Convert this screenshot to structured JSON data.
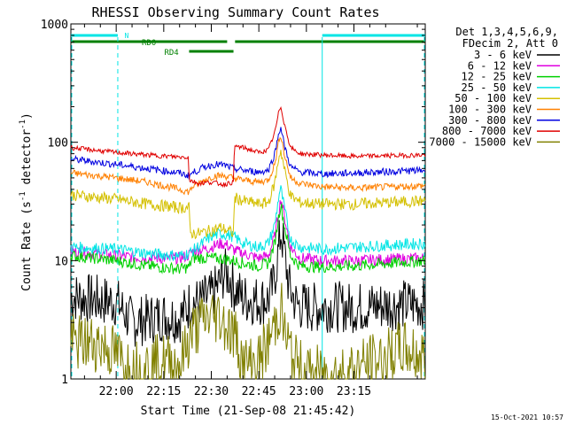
{
  "chart_data": {
    "type": "line",
    "title": "RHESSI Observing Summary Count Rates",
    "xlabel": "Start Time (21-Sep-08 21:45:42)",
    "ylabel": "Count Rate (s⁻¹ detector⁻¹)",
    "ylabel_parts": {
      "main": "Count Rate (s",
      "exp1": "-1",
      "mid": " detector",
      "exp2": "-1",
      "end": ")"
    },
    "y_scale": "log",
    "ylim": [
      1,
      1000
    ],
    "xlim_minutes": [
      -14.3,
      97.5
    ],
    "x_ticks": [
      {
        "label": "22:00",
        "min": 0
      },
      {
        "label": "22:15",
        "min": 15
      },
      {
        "label": "22:30",
        "min": 30
      },
      {
        "label": "22:45",
        "min": 45
      },
      {
        "label": "23:00",
        "min": 60
      },
      {
        "label": "23:15",
        "min": 75
      }
    ],
    "y_ticks": [
      {
        "label": "1000",
        "value": 1000
      },
      {
        "label": "100",
        "value": 100
      },
      {
        "label": "10",
        "value": 10
      },
      {
        "label": "1",
        "value": 1
      }
    ],
    "legend_header": [
      "Det 1,3,4,5,6,9,",
      "FDecim 2, Att 0"
    ],
    "legend_placement": "right",
    "timestamp": "15-Oct-2021 10:57",
    "flags": [
      {
        "label": "N",
        "color": "#00e5e5",
        "start": -14.3,
        "end": 0.5,
        "level": 1
      },
      {
        "label": "",
        "color": "#00e5e5",
        "start": 65,
        "end": 97.5,
        "level": 1
      },
      {
        "label": "RD0",
        "color": "#008000",
        "start": -14.3,
        "end": 35,
        "level": 2
      },
      {
        "label": "",
        "color": "#008000",
        "start": 37.5,
        "end": 97.5,
        "level": 2
      },
      {
        "label": "RD4",
        "color": "#008000",
        "start": 23,
        "end": 37,
        "level": 3
      }
    ],
    "night_markers": [
      0.5,
      65
    ],
    "saa_markers": [
      -14.3,
      97.5
    ],
    "series": [
      {
        "name": "3 - 6 keV",
        "color": "#000000",
        "knots": [
          [
            -14.3,
            5
          ],
          [
            -5,
            4.6
          ],
          [
            0,
            4.5
          ],
          [
            5,
            3
          ],
          [
            10,
            3.2
          ],
          [
            15,
            3.4
          ],
          [
            20,
            3.3
          ],
          [
            22,
            3.8
          ],
          [
            23.5,
            4.5
          ],
          [
            26,
            4.4
          ],
          [
            30,
            5
          ],
          [
            32,
            6
          ],
          [
            34,
            7.8
          ],
          [
            35.5,
            7.5
          ],
          [
            37,
            6
          ],
          [
            40,
            4.8
          ],
          [
            45,
            4.6
          ],
          [
            48,
            4.7
          ],
          [
            49.5,
            6
          ],
          [
            51,
            11
          ],
          [
            52,
            18
          ],
          [
            53,
            12
          ],
          [
            54.5,
            6
          ],
          [
            57,
            4.2
          ],
          [
            62,
            4
          ],
          [
            68,
            4.1
          ],
          [
            75,
            4
          ],
          [
            85,
            4.2
          ],
          [
            97.5,
            4.3
          ]
        ],
        "noise": 0.22
      },
      {
        "name": "6 - 12 keV",
        "color": "#e000e0",
        "knots": [
          [
            -14.3,
            12
          ],
          [
            0,
            11
          ],
          [
            10,
            10.5
          ],
          [
            20,
            10.5
          ],
          [
            22.5,
            11
          ],
          [
            24,
            12
          ],
          [
            28,
            12.5
          ],
          [
            30,
            13
          ],
          [
            33,
            14
          ],
          [
            35,
            13.5
          ],
          [
            37,
            12.3
          ],
          [
            40,
            11.5
          ],
          [
            45,
            10.5
          ],
          [
            48,
            11
          ],
          [
            50,
            16
          ],
          [
            51.5,
            28
          ],
          [
            52,
            34
          ],
          [
            53,
            24
          ],
          [
            55,
            13
          ],
          [
            58,
            10.5
          ],
          [
            65,
            10
          ],
          [
            75,
            10
          ],
          [
            97.5,
            10.5
          ]
        ],
        "noise": 0.05
      },
      {
        "name": "12 - 25 keV",
        "color": "#00d000",
        "knots": [
          [
            -14.3,
            11
          ],
          [
            0,
            10
          ],
          [
            10,
            9
          ],
          [
            20,
            8.5
          ],
          [
            23,
            8.8
          ],
          [
            24,
            10.5
          ],
          [
            30,
            10.5
          ],
          [
            35,
            10.3
          ],
          [
            37,
            10
          ],
          [
            40,
            9.5
          ],
          [
            45,
            9
          ],
          [
            48,
            9.5
          ],
          [
            50,
            14
          ],
          [
            51.5,
            26
          ],
          [
            52,
            30
          ],
          [
            53,
            20
          ],
          [
            55,
            11
          ],
          [
            58,
            9
          ],
          [
            65,
            8.8
          ],
          [
            75,
            9
          ],
          [
            97.5,
            10
          ]
        ],
        "noise": 0.05
      },
      {
        "name": "25 - 50 keV",
        "color": "#00e5e5",
        "knots": [
          [
            -14.3,
            13
          ],
          [
            0,
            12.5
          ],
          [
            10,
            11.5
          ],
          [
            20,
            11
          ],
          [
            23,
            11.5
          ],
          [
            24,
            12
          ],
          [
            30,
            16
          ],
          [
            33,
            17
          ],
          [
            35,
            16.5
          ],
          [
            37,
            16
          ],
          [
            40,
            14
          ],
          [
            45,
            13
          ],
          [
            48,
            14
          ],
          [
            50,
            20
          ],
          [
            51.5,
            38
          ],
          [
            52,
            40
          ],
          [
            53,
            28
          ],
          [
            55,
            15
          ],
          [
            58,
            13
          ],
          [
            65,
            12.5
          ],
          [
            75,
            13
          ],
          [
            97.5,
            14
          ]
        ],
        "noise": 0.05
      },
      {
        "name": "50 - 100 keV",
        "color": "#d4c000",
        "knots": [
          [
            -14.3,
            36
          ],
          [
            0,
            33
          ],
          [
            10,
            30
          ],
          [
            20,
            28
          ],
          [
            23,
            28
          ],
          [
            23.3,
            17
          ],
          [
            26,
            17
          ],
          [
            30,
            18
          ],
          [
            33,
            19
          ],
          [
            35,
            18
          ],
          [
            37,
            17
          ],
          [
            37.3,
            34
          ],
          [
            40,
            32
          ],
          [
            45,
            30
          ],
          [
            48,
            31
          ],
          [
            50,
            45
          ],
          [
            51.5,
            80
          ],
          [
            52,
            85
          ],
          [
            53,
            60
          ],
          [
            55,
            35
          ],
          [
            58,
            31
          ],
          [
            65,
            30
          ],
          [
            75,
            30
          ],
          [
            97.5,
            32
          ]
        ],
        "noise": 0.05
      },
      {
        "name": "100 - 300 keV",
        "color": "#ff8000",
        "knots": [
          [
            -14.3,
            55
          ],
          [
            0,
            50
          ],
          [
            10,
            46
          ],
          [
            20,
            40
          ],
          [
            23,
            38
          ],
          [
            24,
            42
          ],
          [
            28,
            48
          ],
          [
            31,
            52
          ],
          [
            34,
            52
          ],
          [
            37,
            50
          ],
          [
            40,
            48
          ],
          [
            45,
            46
          ],
          [
            48,
            48
          ],
          [
            50,
            65
          ],
          [
            51.5,
            110
          ],
          [
            52,
            115
          ],
          [
            53,
            80
          ],
          [
            55,
            50
          ],
          [
            58,
            45
          ],
          [
            65,
            42
          ],
          [
            75,
            41
          ],
          [
            97.5,
            43
          ]
        ],
        "noise": 0.03
      },
      {
        "name": "300 - 800 keV",
        "color": "#0000e0",
        "knots": [
          [
            -14.3,
            72
          ],
          [
            0,
            65
          ],
          [
            10,
            60
          ],
          [
            20,
            55
          ],
          [
            23,
            52
          ],
          [
            24,
            55
          ],
          [
            28,
            62
          ],
          [
            31,
            65
          ],
          [
            34,
            64
          ],
          [
            37,
            60
          ],
          [
            40,
            58
          ],
          [
            45,
            56
          ],
          [
            48,
            58
          ],
          [
            50,
            80
          ],
          [
            51.5,
            128
          ],
          [
            52,
            132
          ],
          [
            53,
            95
          ],
          [
            55,
            62
          ],
          [
            58,
            56
          ],
          [
            65,
            54
          ],
          [
            75,
            55
          ],
          [
            97.5,
            58
          ]
        ],
        "noise": 0.03
      },
      {
        "name": "800 - 7000 keV",
        "color": "#e00000",
        "knots": [
          [
            -14.3,
            90
          ],
          [
            0,
            82
          ],
          [
            10,
            78
          ],
          [
            20,
            75
          ],
          [
            22.8,
            75
          ],
          [
            23,
            48
          ],
          [
            26,
            45
          ],
          [
            30,
            46
          ],
          [
            34,
            44
          ],
          [
            37,
            46
          ],
          [
            37.3,
            93
          ],
          [
            40,
            90
          ],
          [
            45,
            82
          ],
          [
            48,
            86
          ],
          [
            50,
            120
          ],
          [
            51.5,
            190
          ],
          [
            52,
            200
          ],
          [
            53,
            145
          ],
          [
            55,
            90
          ],
          [
            58,
            80
          ],
          [
            65,
            78
          ],
          [
            75,
            76
          ],
          [
            97.5,
            78
          ]
        ],
        "noise": 0.02
      },
      {
        "name": "7000 - 15000 keV",
        "color": "#808000",
        "knots": [
          [
            -14.3,
            2
          ],
          [
            -5,
            2
          ],
          [
            0,
            1.6
          ],
          [
            5,
            1.2
          ],
          [
            15,
            1.4
          ],
          [
            20,
            1.3
          ],
          [
            24,
            2.5
          ],
          [
            28,
            3.2
          ],
          [
            32,
            3.5
          ],
          [
            35,
            2.8
          ],
          [
            38,
            2.2
          ],
          [
            40,
            1.3
          ],
          [
            45,
            1.4
          ],
          [
            48,
            2
          ],
          [
            51,
            3.5
          ],
          [
            52,
            4.2
          ],
          [
            53,
            2.5
          ],
          [
            56,
            1.4
          ],
          [
            60,
            1.1
          ],
          [
            65,
            1.1
          ],
          [
            70,
            1.1
          ],
          [
            85,
            1.5
          ],
          [
            90,
            1.8
          ],
          [
            97.5,
            1.5
          ]
        ],
        "noise": 0.25
      }
    ]
  }
}
